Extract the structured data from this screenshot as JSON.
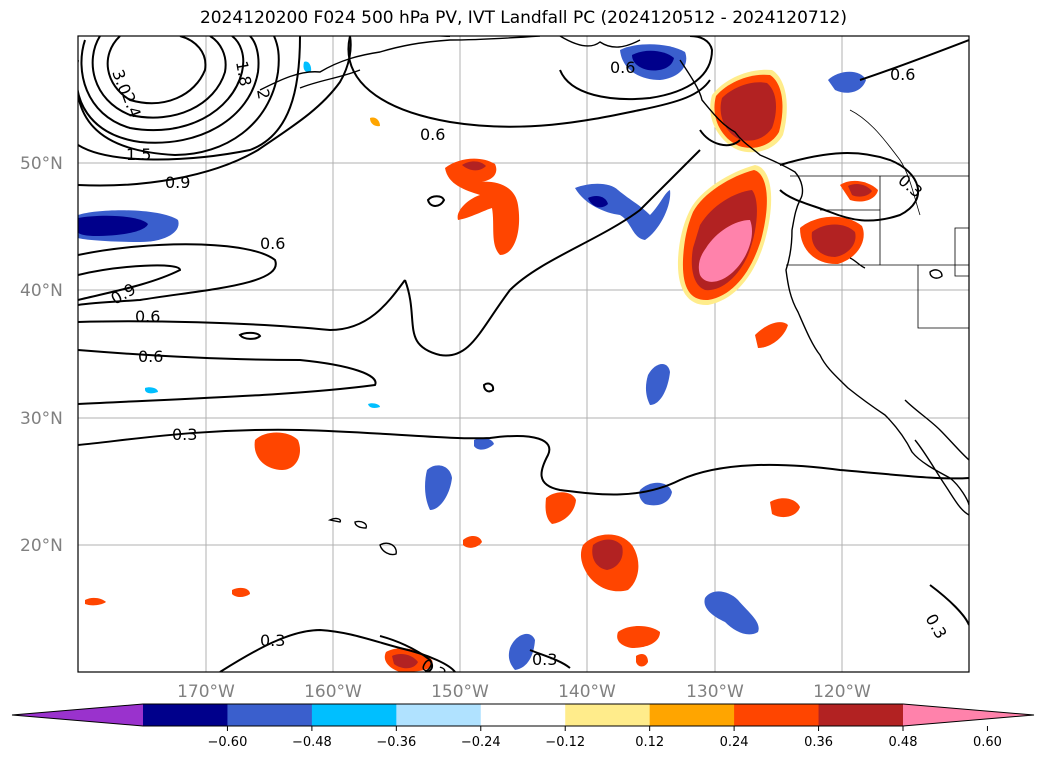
{
  "title": "2024120200 F024 500 hPa PV, IVT Landfall PC (2024120512 - 2024120712)",
  "map": {
    "lat_labels": [
      "50°N",
      "40°N",
      "30°N",
      "20°N"
    ],
    "lon_labels": [
      "170°W",
      "160°W",
      "150°W",
      "140°W",
      "130°W",
      "120°W"
    ],
    "contour_labels": [
      "3.0",
      "2.4",
      "1.8",
      "2",
      "1.5",
      "0.9",
      "0.6",
      "0.6",
      "0.6",
      "0.3",
      "0.6",
      "0.9",
      "0.6",
      "0.6",
      "0.3",
      "0.3",
      "0.3",
      "0.3",
      "0.3"
    ]
  },
  "colorbar": {
    "ticks": [
      "−0.60",
      "−0.48",
      "−0.36",
      "−0.24",
      "−0.12",
      "0.12",
      "0.24",
      "0.36",
      "0.48",
      "0.60"
    ],
    "colors": [
      "#9a32cd",
      "#00008b",
      "#3a5fcd",
      "#00bfff",
      "#b0e2ff",
      "#ffffff",
      "#ffec8b",
      "#ffa500",
      "#ff4500",
      "#b22222",
      "#ff82ab"
    ]
  }
}
